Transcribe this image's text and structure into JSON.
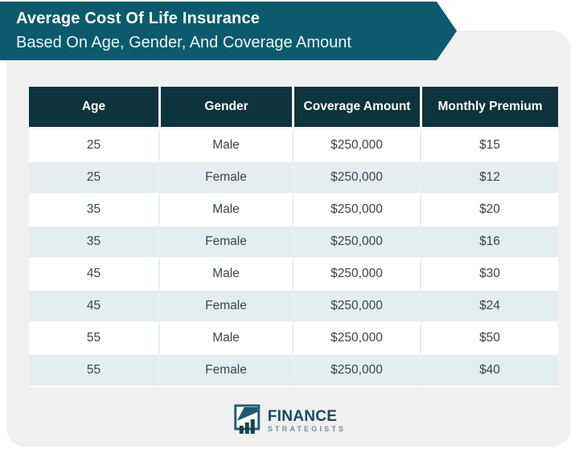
{
  "banner": {
    "title": "Average Cost Of Life Insurance",
    "subtitle": "Based On Age, Gender, And Coverage Amount"
  },
  "chart_data": {
    "type": "table",
    "title": "Average Cost Of Life Insurance",
    "subtitle": "Based On Age, Gender, And Coverage Amount",
    "columns": [
      "Age",
      "Gender",
      "Coverage Amount",
      "Monthly Premium"
    ],
    "rows": [
      [
        "25",
        "Male",
        "$250,000",
        "$15"
      ],
      [
        "25",
        "Female",
        "$250,000",
        "$12"
      ],
      [
        "35",
        "Male",
        "$250,000",
        "$20"
      ],
      [
        "35",
        "Female",
        "$250,000",
        "$16"
      ],
      [
        "45",
        "Male",
        "$250,000",
        "$30"
      ],
      [
        "45",
        "Female",
        "$250,000",
        "$24"
      ],
      [
        "55",
        "Male",
        "$250,000",
        "$50"
      ],
      [
        "55",
        "Female",
        "$250,000",
        "$40"
      ]
    ]
  },
  "footer": {
    "brand_primary": "FINANCE",
    "brand_secondary": "STRATEGISTS"
  },
  "colors": {
    "banner_bg": "#0c5a6d",
    "table_header_bg": "#0d333d",
    "alt_row_bg": "#e4eef0",
    "card_bg": "#f0f0f0",
    "body_text": "#3d4449",
    "logo_primary": "#1a4b59",
    "logo_secondary": "#6d919d"
  }
}
